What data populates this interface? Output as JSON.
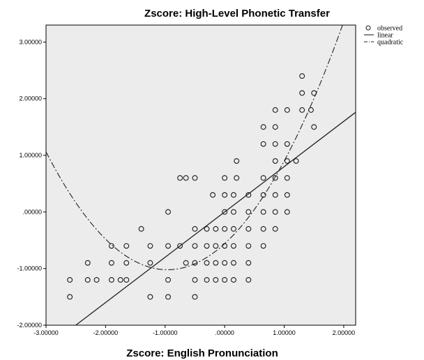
{
  "chart_data": {
    "type": "scatter",
    "title": "Zscore: High-Level Phonetic Transfer",
    "xlabel": "Zscore: English Pronunciation",
    "ylabel": "",
    "xlim": [
      -3.0,
      2.2
    ],
    "ylim": [
      -2.0,
      3.3
    ],
    "x_ticks": [
      -3.0,
      -2.0,
      -1.0,
      0.0,
      1.0,
      2.0
    ],
    "x_tick_labels": [
      "-3.00000",
      "-2.00000",
      "-1.00000",
      ".00000",
      "1.00000",
      "2.00000"
    ],
    "y_ticks": [
      -2.0,
      -1.0,
      0.0,
      1.0,
      2.0,
      3.0
    ],
    "y_tick_labels": [
      "-2.00000",
      "-1.00000",
      ".00000",
      "1.00000",
      "2.00000",
      "3.00000"
    ],
    "grid": false,
    "legend_position": "top-right, outside plot",
    "colors": {
      "plot_bg": "#ececec",
      "marks": "#1a1a1a"
    },
    "legend": [
      {
        "label": "observed",
        "style": "circle"
      },
      {
        "label": "linear",
        "style": "solid"
      },
      {
        "label": "quadratic",
        "style": "dash-dot"
      }
    ],
    "series": [
      {
        "name": "observed",
        "kind": "points",
        "points": [
          [
            -2.6,
            -1.2
          ],
          [
            -2.6,
            -1.5
          ],
          [
            -2.3,
            -0.9
          ],
          [
            -2.3,
            -1.2
          ],
          [
            -2.15,
            -1.2
          ],
          [
            -1.9,
            -0.6
          ],
          [
            -1.9,
            -0.9
          ],
          [
            -1.9,
            -1.2
          ],
          [
            -1.75,
            -1.2
          ],
          [
            -1.65,
            -0.6
          ],
          [
            -1.65,
            -0.9
          ],
          [
            -1.65,
            -1.2
          ],
          [
            -1.4,
            -0.3
          ],
          [
            -1.25,
            -0.6
          ],
          [
            -1.25,
            -0.9
          ],
          [
            -1.25,
            -1.5
          ],
          [
            -0.95,
            0.0
          ],
          [
            -0.95,
            -0.6
          ],
          [
            -0.95,
            -1.2
          ],
          [
            -0.95,
            -1.5
          ],
          [
            -0.75,
            0.6
          ],
          [
            -0.65,
            0.6
          ],
          [
            -0.75,
            -0.6
          ],
          [
            -0.65,
            -0.9
          ],
          [
            -0.5,
            0.6
          ],
          [
            -0.5,
            -0.3
          ],
          [
            -0.5,
            -0.6
          ],
          [
            -0.5,
            -0.9
          ],
          [
            -0.5,
            -1.2
          ],
          [
            -0.5,
            -1.5
          ],
          [
            -0.3,
            -0.3
          ],
          [
            -0.3,
            -0.6
          ],
          [
            -0.3,
            -0.9
          ],
          [
            -0.3,
            -1.2
          ],
          [
            -0.2,
            0.3
          ],
          [
            -0.15,
            -0.3
          ],
          [
            -0.15,
            -0.6
          ],
          [
            -0.15,
            -0.9
          ],
          [
            -0.15,
            -1.2
          ],
          [
            0.0,
            0.6
          ],
          [
            0.0,
            0.3
          ],
          [
            0.0,
            0.0
          ],
          [
            0.0,
            -0.3
          ],
          [
            0.0,
            -0.6
          ],
          [
            0.0,
            -0.9
          ],
          [
            0.0,
            -1.2
          ],
          [
            0.15,
            0.3
          ],
          [
            0.15,
            0.0
          ],
          [
            0.15,
            -0.3
          ],
          [
            0.15,
            -0.6
          ],
          [
            0.15,
            -0.9
          ],
          [
            0.15,
            -1.2
          ],
          [
            0.2,
            0.9
          ],
          [
            0.2,
            0.6
          ],
          [
            0.4,
            0.3
          ],
          [
            0.4,
            0.0
          ],
          [
            0.4,
            -0.3
          ],
          [
            0.4,
            -0.6
          ],
          [
            0.4,
            -0.9
          ],
          [
            0.4,
            -1.2
          ],
          [
            0.65,
            1.5
          ],
          [
            0.65,
            1.2
          ],
          [
            0.65,
            0.6
          ],
          [
            0.65,
            0.3
          ],
          [
            0.65,
            0.0
          ],
          [
            0.65,
            -0.3
          ],
          [
            0.65,
            -0.6
          ],
          [
            0.85,
            1.8
          ],
          [
            0.85,
            1.5
          ],
          [
            0.85,
            1.2
          ],
          [
            0.85,
            0.9
          ],
          [
            0.85,
            0.6
          ],
          [
            0.85,
            0.3
          ],
          [
            0.85,
            0.0
          ],
          [
            0.85,
            -0.3
          ],
          [
            1.05,
            1.8
          ],
          [
            1.05,
            1.2
          ],
          [
            1.05,
            0.9
          ],
          [
            1.05,
            0.6
          ],
          [
            1.05,
            0.3
          ],
          [
            1.05,
            0.0
          ],
          [
            1.2,
            0.9
          ],
          [
            1.3,
            2.4
          ],
          [
            1.3,
            2.1
          ],
          [
            1.3,
            1.8
          ],
          [
            1.45,
            1.8
          ],
          [
            1.5,
            2.1
          ],
          [
            1.5,
            1.5
          ]
        ]
      },
      {
        "name": "linear",
        "kind": "line",
        "intercept": 0.0,
        "slope": 0.8
      },
      {
        "name": "quadratic",
        "kind": "curve",
        "a": 0.5,
        "b": 0.96,
        "c": -0.56
      }
    ]
  }
}
